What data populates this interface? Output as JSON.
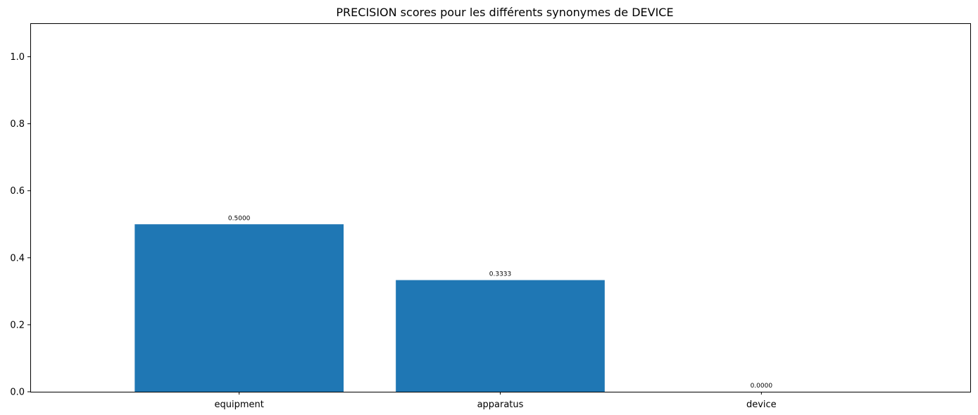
{
  "chart_data": {
    "type": "bar",
    "title": "PRECISION scores pour les différents synonymes de DEVICE",
    "xlabel": "",
    "ylabel": "",
    "categories": [
      "equipment",
      "apparatus",
      "device"
    ],
    "values": [
      0.5,
      0.3333,
      0.0
    ],
    "data_labels": [
      "0.5000",
      "0.3333",
      "0.0000"
    ],
    "ylim": [
      0,
      1.1
    ],
    "yticks": [
      0.0,
      0.2,
      0.4,
      0.6,
      0.8,
      1.0
    ],
    "ytick_labels": [
      "0.0",
      "0.2",
      "0.4",
      "0.6",
      "0.8",
      "1.0"
    ],
    "bar_color": "#1f77b4",
    "grid": false,
    "legend": "none"
  }
}
